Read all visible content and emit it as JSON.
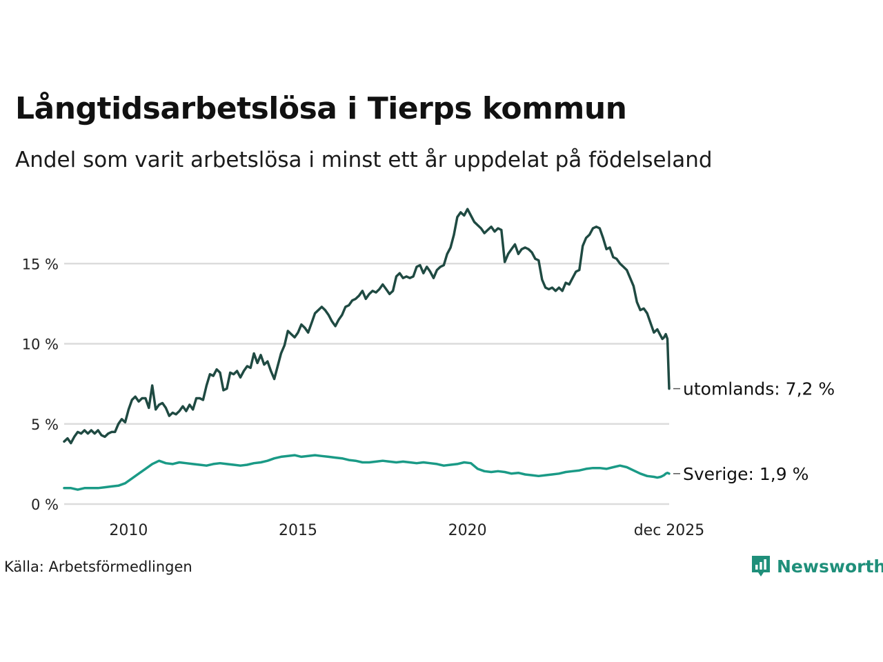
{
  "title": "Långtidsarbetslösa i Tierps kommun",
  "subtitle": "Andel som varit arbetslösa i minst ett år uppdelat på födelseland",
  "source": "Källa: Arbetsförmedlingen",
  "brand": "Newsworthy",
  "colors": {
    "utomlands": "#1f4a42",
    "sverige": "#1a9a86",
    "grid": "#dcdcdc",
    "brand": "#1f8f7a"
  },
  "chart_data": {
    "type": "line",
    "title": "Långtidsarbetslösa i Tierps kommun",
    "xlabel": "",
    "ylabel": "",
    "xlim": [
      2008.1,
      2025.95
    ],
    "ylim": [
      0,
      18
    ],
    "grid": true,
    "y_ticks": [
      0,
      5,
      10,
      15
    ],
    "y_tick_labels": [
      "0 %",
      "5 %",
      "10 %",
      "15 %"
    ],
    "x_ticks": [
      2010,
      2015,
      2020,
      2025.95
    ],
    "x_tick_labels": [
      "2010",
      "2015",
      "2020",
      "dec 2025"
    ],
    "series": [
      {
        "name": "utomlands",
        "end_label": "utomlands: 7,2 %",
        "points": [
          [
            2008.1,
            3.9
          ],
          [
            2008.2,
            4.1
          ],
          [
            2008.3,
            3.8
          ],
          [
            2008.4,
            4.2
          ],
          [
            2008.5,
            4.5
          ],
          [
            2008.6,
            4.4
          ],
          [
            2008.7,
            4.6
          ],
          [
            2008.8,
            4.4
          ],
          [
            2008.9,
            4.6
          ],
          [
            2009.0,
            4.4
          ],
          [
            2009.1,
            4.6
          ],
          [
            2009.2,
            4.3
          ],
          [
            2009.3,
            4.2
          ],
          [
            2009.4,
            4.4
          ],
          [
            2009.5,
            4.5
          ],
          [
            2009.6,
            4.5
          ],
          [
            2009.7,
            5.0
          ],
          [
            2009.8,
            5.3
          ],
          [
            2009.9,
            5.1
          ],
          [
            2010.0,
            5.9
          ],
          [
            2010.1,
            6.5
          ],
          [
            2010.2,
            6.7
          ],
          [
            2010.3,
            6.4
          ],
          [
            2010.4,
            6.6
          ],
          [
            2010.5,
            6.6
          ],
          [
            2010.6,
            6.0
          ],
          [
            2010.7,
            7.4
          ],
          [
            2010.8,
            5.9
          ],
          [
            2010.9,
            6.2
          ],
          [
            2011.0,
            6.3
          ],
          [
            2011.1,
            6.0
          ],
          [
            2011.2,
            5.5
          ],
          [
            2011.3,
            5.7
          ],
          [
            2011.4,
            5.6
          ],
          [
            2011.5,
            5.8
          ],
          [
            2011.6,
            6.1
          ],
          [
            2011.7,
            5.8
          ],
          [
            2011.8,
            6.2
          ],
          [
            2011.9,
            5.9
          ],
          [
            2012.0,
            6.6
          ],
          [
            2012.1,
            6.6
          ],
          [
            2012.2,
            6.5
          ],
          [
            2012.3,
            7.4
          ],
          [
            2012.4,
            8.1
          ],
          [
            2012.5,
            8.0
          ],
          [
            2012.6,
            8.4
          ],
          [
            2012.7,
            8.2
          ],
          [
            2012.8,
            7.1
          ],
          [
            2012.9,
            7.2
          ],
          [
            2013.0,
            8.2
          ],
          [
            2013.1,
            8.1
          ],
          [
            2013.2,
            8.3
          ],
          [
            2013.3,
            7.9
          ],
          [
            2013.4,
            8.3
          ],
          [
            2013.5,
            8.6
          ],
          [
            2013.6,
            8.5
          ],
          [
            2013.7,
            9.4
          ],
          [
            2013.8,
            8.8
          ],
          [
            2013.9,
            9.3
          ],
          [
            2014.0,
            8.7
          ],
          [
            2014.1,
            8.9
          ],
          [
            2014.2,
            8.3
          ],
          [
            2014.3,
            7.8
          ],
          [
            2014.4,
            8.6
          ],
          [
            2014.5,
            9.4
          ],
          [
            2014.6,
            9.9
          ],
          [
            2014.7,
            10.8
          ],
          [
            2014.8,
            10.6
          ],
          [
            2014.9,
            10.4
          ],
          [
            2015.0,
            10.7
          ],
          [
            2015.1,
            11.2
          ],
          [
            2015.2,
            11.0
          ],
          [
            2015.3,
            10.7
          ],
          [
            2015.4,
            11.3
          ],
          [
            2015.5,
            11.9
          ],
          [
            2015.6,
            12.1
          ],
          [
            2015.7,
            12.3
          ],
          [
            2015.8,
            12.1
          ],
          [
            2015.9,
            11.8
          ],
          [
            2016.0,
            11.4
          ],
          [
            2016.1,
            11.1
          ],
          [
            2016.2,
            11.5
          ],
          [
            2016.3,
            11.8
          ],
          [
            2016.4,
            12.3
          ],
          [
            2016.5,
            12.4
          ],
          [
            2016.6,
            12.7
          ],
          [
            2016.7,
            12.8
          ],
          [
            2016.8,
            13.0
          ],
          [
            2016.9,
            13.3
          ],
          [
            2017.0,
            12.8
          ],
          [
            2017.1,
            13.1
          ],
          [
            2017.2,
            13.3
          ],
          [
            2017.3,
            13.2
          ],
          [
            2017.4,
            13.4
          ],
          [
            2017.5,
            13.7
          ],
          [
            2017.6,
            13.4
          ],
          [
            2017.7,
            13.1
          ],
          [
            2017.8,
            13.3
          ],
          [
            2017.9,
            14.2
          ],
          [
            2018.0,
            14.4
          ],
          [
            2018.1,
            14.1
          ],
          [
            2018.2,
            14.2
          ],
          [
            2018.3,
            14.1
          ],
          [
            2018.4,
            14.2
          ],
          [
            2018.5,
            14.8
          ],
          [
            2018.6,
            14.9
          ],
          [
            2018.7,
            14.4
          ],
          [
            2018.8,
            14.8
          ],
          [
            2018.9,
            14.5
          ],
          [
            2019.0,
            14.1
          ],
          [
            2019.1,
            14.6
          ],
          [
            2019.2,
            14.8
          ],
          [
            2019.3,
            14.9
          ],
          [
            2019.4,
            15.6
          ],
          [
            2019.5,
            16.0
          ],
          [
            2019.6,
            16.8
          ],
          [
            2019.7,
            17.9
          ],
          [
            2019.8,
            18.2
          ],
          [
            2019.9,
            18.0
          ],
          [
            2020.0,
            18.4
          ],
          [
            2020.1,
            18.0
          ],
          [
            2020.2,
            17.6
          ],
          [
            2020.3,
            17.4
          ],
          [
            2020.4,
            17.2
          ],
          [
            2020.5,
            16.9
          ],
          [
            2020.6,
            17.1
          ],
          [
            2020.7,
            17.3
          ],
          [
            2020.8,
            17.0
          ],
          [
            2020.9,
            17.2
          ],
          [
            2021.0,
            17.1
          ],
          [
            2021.1,
            15.1
          ],
          [
            2021.2,
            15.6
          ],
          [
            2021.3,
            15.9
          ],
          [
            2021.4,
            16.2
          ],
          [
            2021.5,
            15.6
          ],
          [
            2021.6,
            15.9
          ],
          [
            2021.7,
            16.0
          ],
          [
            2021.8,
            15.9
          ],
          [
            2021.9,
            15.7
          ],
          [
            2022.0,
            15.3
          ],
          [
            2022.1,
            15.2
          ],
          [
            2022.2,
            14.0
          ],
          [
            2022.3,
            13.5
          ],
          [
            2022.4,
            13.4
          ],
          [
            2022.5,
            13.5
          ],
          [
            2022.6,
            13.3
          ],
          [
            2022.7,
            13.5
          ],
          [
            2022.8,
            13.3
          ],
          [
            2022.9,
            13.8
          ],
          [
            2023.0,
            13.7
          ],
          [
            2023.1,
            14.1
          ],
          [
            2023.2,
            14.5
          ],
          [
            2023.3,
            14.6
          ],
          [
            2023.4,
            16.1
          ],
          [
            2023.5,
            16.6
          ],
          [
            2023.6,
            16.8
          ],
          [
            2023.7,
            17.2
          ],
          [
            2023.8,
            17.3
          ],
          [
            2023.9,
            17.2
          ],
          [
            2024.0,
            16.6
          ],
          [
            2024.1,
            15.9
          ],
          [
            2024.2,
            16.0
          ],
          [
            2024.3,
            15.4
          ],
          [
            2024.4,
            15.3
          ],
          [
            2024.5,
            15.0
          ],
          [
            2024.6,
            14.8
          ],
          [
            2024.7,
            14.6
          ],
          [
            2024.8,
            14.1
          ],
          [
            2024.9,
            13.6
          ],
          [
            2025.0,
            12.6
          ],
          [
            2025.1,
            12.1
          ],
          [
            2025.2,
            12.2
          ],
          [
            2025.3,
            11.9
          ],
          [
            2025.4,
            11.3
          ],
          [
            2025.5,
            10.7
          ],
          [
            2025.6,
            10.9
          ],
          [
            2025.7,
            10.5
          ],
          [
            2025.75,
            10.3
          ],
          [
            2025.8,
            10.4
          ],
          [
            2025.85,
            10.6
          ],
          [
            2025.9,
            10.3
          ],
          [
            2025.95,
            7.2
          ]
        ]
      },
      {
        "name": "Sverige",
        "end_label": "Sverige: 1,9 %",
        "points": [
          [
            2008.1,
            1.0
          ],
          [
            2008.3,
            1.0
          ],
          [
            2008.5,
            0.9
          ],
          [
            2008.7,
            1.0
          ],
          [
            2008.9,
            1.0
          ],
          [
            2009.1,
            1.0
          ],
          [
            2009.3,
            1.05
          ],
          [
            2009.5,
            1.1
          ],
          [
            2009.7,
            1.15
          ],
          [
            2009.9,
            1.3
          ],
          [
            2010.1,
            1.6
          ],
          [
            2010.3,
            1.9
          ],
          [
            2010.5,
            2.2
          ],
          [
            2010.7,
            2.5
          ],
          [
            2010.9,
            2.7
          ],
          [
            2011.1,
            2.55
          ],
          [
            2011.3,
            2.5
          ],
          [
            2011.5,
            2.6
          ],
          [
            2011.7,
            2.55
          ],
          [
            2011.9,
            2.5
          ],
          [
            2012.1,
            2.45
          ],
          [
            2012.3,
            2.4
          ],
          [
            2012.5,
            2.5
          ],
          [
            2012.7,
            2.55
          ],
          [
            2012.9,
            2.5
          ],
          [
            2013.1,
            2.45
          ],
          [
            2013.3,
            2.4
          ],
          [
            2013.5,
            2.45
          ],
          [
            2013.7,
            2.55
          ],
          [
            2013.9,
            2.6
          ],
          [
            2014.1,
            2.7
          ],
          [
            2014.3,
            2.85
          ],
          [
            2014.5,
            2.95
          ],
          [
            2014.7,
            3.0
          ],
          [
            2014.9,
            3.05
          ],
          [
            2015.1,
            2.95
          ],
          [
            2015.3,
            3.0
          ],
          [
            2015.5,
            3.05
          ],
          [
            2015.7,
            3.0
          ],
          [
            2015.9,
            2.95
          ],
          [
            2016.1,
            2.9
          ],
          [
            2016.3,
            2.85
          ],
          [
            2016.5,
            2.75
          ],
          [
            2016.7,
            2.7
          ],
          [
            2016.9,
            2.6
          ],
          [
            2017.1,
            2.6
          ],
          [
            2017.3,
            2.65
          ],
          [
            2017.5,
            2.7
          ],
          [
            2017.7,
            2.65
          ],
          [
            2017.9,
            2.6
          ],
          [
            2018.1,
            2.65
          ],
          [
            2018.3,
            2.6
          ],
          [
            2018.5,
            2.55
          ],
          [
            2018.7,
            2.6
          ],
          [
            2018.9,
            2.55
          ],
          [
            2019.1,
            2.5
          ],
          [
            2019.3,
            2.4
          ],
          [
            2019.5,
            2.45
          ],
          [
            2019.7,
            2.5
          ],
          [
            2019.9,
            2.6
          ],
          [
            2020.1,
            2.55
          ],
          [
            2020.3,
            2.2
          ],
          [
            2020.5,
            2.05
          ],
          [
            2020.7,
            2.0
          ],
          [
            2020.9,
            2.05
          ],
          [
            2021.1,
            2.0
          ],
          [
            2021.3,
            1.9
          ],
          [
            2021.5,
            1.95
          ],
          [
            2021.7,
            1.85
          ],
          [
            2021.9,
            1.8
          ],
          [
            2022.1,
            1.75
          ],
          [
            2022.3,
            1.8
          ],
          [
            2022.5,
            1.85
          ],
          [
            2022.7,
            1.9
          ],
          [
            2022.9,
            2.0
          ],
          [
            2023.1,
            2.05
          ],
          [
            2023.3,
            2.1
          ],
          [
            2023.5,
            2.2
          ],
          [
            2023.7,
            2.25
          ],
          [
            2023.9,
            2.25
          ],
          [
            2024.1,
            2.2
          ],
          [
            2024.3,
            2.3
          ],
          [
            2024.5,
            2.4
          ],
          [
            2024.7,
            2.3
          ],
          [
            2024.9,
            2.1
          ],
          [
            2025.1,
            1.9
          ],
          [
            2025.3,
            1.75
          ],
          [
            2025.5,
            1.7
          ],
          [
            2025.6,
            1.65
          ],
          [
            2025.7,
            1.7
          ],
          [
            2025.75,
            1.75
          ],
          [
            2025.8,
            1.8
          ],
          [
            2025.85,
            1.9
          ],
          [
            2025.9,
            1.95
          ],
          [
            2025.95,
            1.9
          ]
        ]
      }
    ]
  }
}
